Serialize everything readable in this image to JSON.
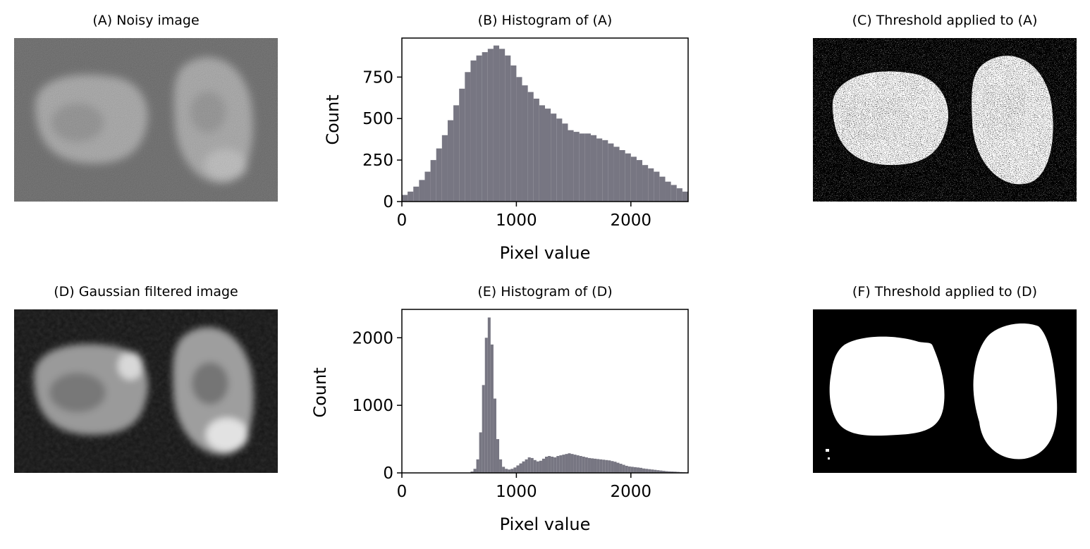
{
  "panels": {
    "a": {
      "title": "(A) Noisy image"
    },
    "c": {
      "title": "(C) Threshold applied to (A)"
    },
    "d": {
      "title": "(D) Gaussian filtered image"
    },
    "f": {
      "title": "(F) Threshold applied to (D)"
    }
  },
  "colors": {
    "bar": "#777682",
    "axis": "#000000"
  },
  "chart_data": [
    {
      "id": "b",
      "type": "bar",
      "title": "(B) Histogram of (A)",
      "xlabel": "Pixel value",
      "ylabel": "Count",
      "xlim": [
        0,
        2500
      ],
      "ylim": [
        0,
        985
      ],
      "xticks": [
        0,
        1000,
        2000
      ],
      "yticks": [
        0,
        250,
        500,
        750
      ],
      "x": [
        0,
        50,
        100,
        150,
        200,
        250,
        300,
        350,
        400,
        450,
        500,
        550,
        600,
        650,
        700,
        750,
        800,
        850,
        900,
        950,
        1000,
        1050,
        1100,
        1150,
        1200,
        1250,
        1300,
        1350,
        1400,
        1450,
        1500,
        1550,
        1600,
        1650,
        1700,
        1750,
        1800,
        1850,
        1900,
        1950,
        2000,
        2050,
        2100,
        2150,
        2200,
        2250,
        2300,
        2350,
        2400,
        2450
      ],
      "values": [
        40,
        60,
        90,
        130,
        180,
        250,
        320,
        400,
        490,
        580,
        680,
        780,
        850,
        880,
        900,
        920,
        940,
        920,
        880,
        820,
        750,
        700,
        660,
        620,
        580,
        560,
        530,
        500,
        470,
        430,
        420,
        410,
        410,
        400,
        380,
        370,
        350,
        330,
        310,
        290,
        270,
        250,
        220,
        200,
        180,
        150,
        120,
        100,
        80,
        60
      ]
    },
    {
      "id": "e",
      "type": "bar",
      "title": "(E) Histogram of (D)",
      "xlabel": "Pixel value",
      "ylabel": "Count",
      "xlim": [
        0,
        2500
      ],
      "ylim": [
        0,
        2420
      ],
      "xticks": [
        0,
        1000,
        2000
      ],
      "yticks": [
        0,
        1000,
        2000
      ],
      "x": [
        550,
        575,
        600,
        625,
        650,
        675,
        700,
        725,
        750,
        775,
        800,
        825,
        850,
        875,
        900,
        925,
        950,
        975,
        1000,
        1025,
        1050,
        1075,
        1100,
        1125,
        1150,
        1175,
        1200,
        1225,
        1250,
        1275,
        1300,
        1325,
        1350,
        1375,
        1400,
        1425,
        1450,
        1475,
        1500,
        1525,
        1550,
        1575,
        1600,
        1625,
        1650,
        1675,
        1700,
        1725,
        1750,
        1775,
        1800,
        1825,
        1850,
        1875,
        1900,
        1925,
        1950,
        1975,
        2000,
        2025,
        2050,
        2075,
        2100,
        2125,
        2150,
        2175,
        2200,
        2225,
        2250,
        2275,
        2300,
        2325,
        2350,
        2375,
        2400,
        2425,
        2450,
        2475
      ],
      "values": [
        0,
        5,
        20,
        60,
        200,
        600,
        1300,
        2000,
        2300,
        1900,
        1100,
        500,
        200,
        90,
        60,
        50,
        60,
        80,
        110,
        140,
        170,
        200,
        230,
        220,
        190,
        170,
        180,
        210,
        240,
        250,
        240,
        230,
        250,
        260,
        270,
        280,
        290,
        280,
        270,
        260,
        250,
        240,
        230,
        220,
        215,
        210,
        205,
        200,
        195,
        190,
        185,
        175,
        165,
        150,
        135,
        120,
        105,
        95,
        90,
        85,
        80,
        75,
        65,
        60,
        55,
        50,
        45,
        40,
        35,
        30,
        25,
        22,
        20,
        18,
        15,
        12,
        10,
        8
      ]
    }
  ]
}
